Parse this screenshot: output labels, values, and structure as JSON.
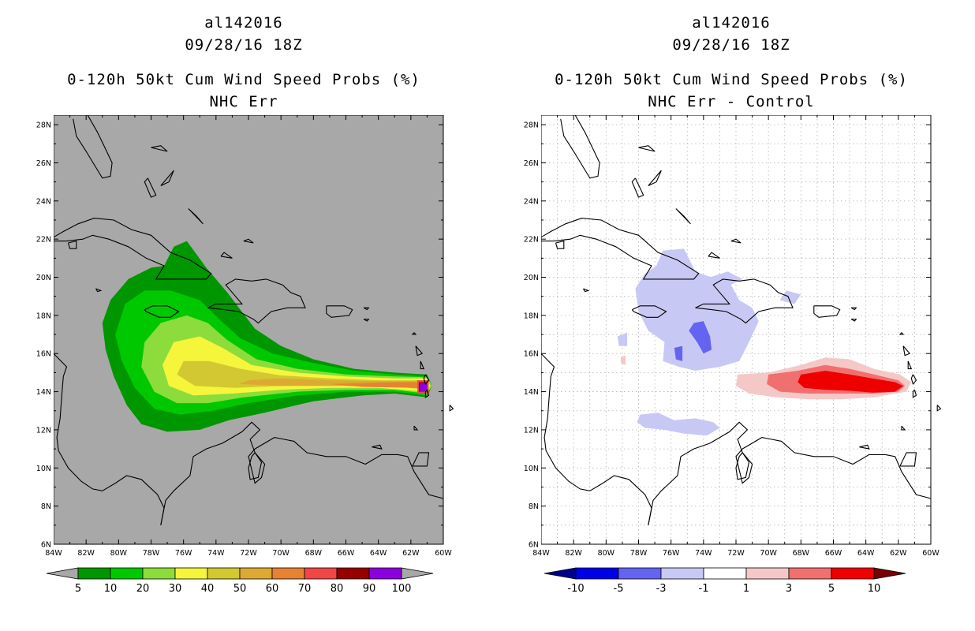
{
  "left_panel": {
    "storm_id": "al142016",
    "datetime": "09/28/16 18Z",
    "product": "0-120h 50kt Cum Wind Speed Probs (%)",
    "subtitle": "NHC Err",
    "background_color": "#a8a8a8",
    "colorbar": {
      "labels": [
        "5",
        "10",
        "20",
        "30",
        "40",
        "50",
        "60",
        "70",
        "80",
        "90",
        "100"
      ],
      "colors": [
        "#009600",
        "#00c800",
        "#8cdc3c",
        "#f5f53c",
        "#d2c832",
        "#dcaa32",
        "#e68232",
        "#f04646",
        "#960000",
        "#8c00dc"
      ],
      "under_color": "#a8a8a8",
      "over_color": "#a8a8a8"
    }
  },
  "right_panel": {
    "storm_id": "al142016",
    "datetime": "09/28/16 18Z",
    "product": "0-120h 50kt Cum Wind Speed Probs (%)",
    "subtitle": "NHC Err - Control",
    "background_color": "#ffffff",
    "colorbar": {
      "labels": [
        "-10",
        "-5",
        "-3",
        "-1",
        "1",
        "3",
        "5",
        "10"
      ],
      "colors": [
        "#0000e6",
        "#6464f0",
        "#c8c8f5",
        "#ffffff",
        "#f5c8c8",
        "#f07070",
        "#ee0000"
      ],
      "under_color": "#00008c",
      "over_color": "#780000"
    }
  },
  "axes": {
    "lon_labels": [
      "84W",
      "82W",
      "80W",
      "78W",
      "76W",
      "74W",
      "72W",
      "70W",
      "68W",
      "66W",
      "64W",
      "62W",
      "60W"
    ],
    "lat_labels": [
      "6N",
      "8N",
      "10N",
      "12N",
      "14N",
      "16N",
      "18N",
      "20N",
      "22N",
      "24N",
      "26N",
      "28N"
    ],
    "lon_range": [
      -84,
      -60
    ],
    "lat_range": [
      6,
      28.5
    ]
  },
  "map_features": {
    "coastline_color": "#000000",
    "grid_color": "#b4b4b4"
  }
}
